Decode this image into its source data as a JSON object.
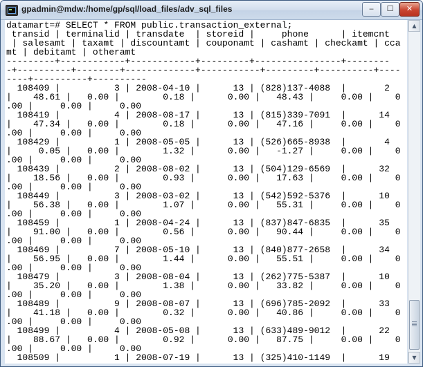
{
  "window": {
    "title": "gpadmin@mdw:/home/gp/sql/load_files/adv_sql_files",
    "minimize_symbol": "‒",
    "maximize_symbol": "☐",
    "close_symbol": "✕"
  },
  "terminal": {
    "lines": [
      "datamart=# SELECT * FROM public.transaction_external;",
      " transid | terminalid | transdate  | storeid |     phone      | itemcnt",
      " | salesamt | taxamt | discountamt | couponamt | cashamt | checkamt | cca",
      "mt | debitamt | otheramt",
      "---------+------------+------------+---------+----------------+--------",
      "-+----------+--------+-------------+-----------+---------+----------+----",
      "----+----------+----------",
      "  108409 |          3 | 2008-04-10 |      13 | (828)137-4088  |       2",
      "|    48.61 |   0.00 |        0.18 |      0.00 |   48.43 |     0.00 |    0",
      ".00 |     0.00 |     0.00",
      "  108419 |          4 | 2008-08-17 |      13 | (815)339-7091  |      14",
      "|    47.34 |   0.00 |        0.18 |      0.00 |   47.16 |     0.00 |    0",
      ".00 |     0.00 |     0.00",
      "  108429 |          1 | 2008-05-05 |      13 | (526)665-8938  |       4",
      "|     0.05 |   0.00 |        1.32 |      0.00 |   -1.27 |     0.00 |    0",
      ".00 |     0.00 |     0.00",
      "  108439 |          2 | 2008-08-02 |      13 | (504)129-6569  |      32",
      "|    18.56 |   0.00 |        0.93 |      0.00 |   17.63 |     0.00 |    0",
      ".00 |     0.00 |     0.00",
      "  108449 |          3 | 2008-03-02 |      13 | (542)592-5376  |      10",
      "|    56.38 |   0.00 |        1.07 |      0.00 |   55.31 |     0.00 |    0",
      ".00 |     0.00 |     0.00",
      "  108459 |          1 | 2008-04-24 |      13 | (837)847-6835  |      35",
      "|    91.00 |   0.00 |        0.56 |      0.00 |   90.44 |     0.00 |    0",
      ".00 |     0.00 |     0.00",
      "  108469 |          7 | 2008-05-10 |      13 | (840)877-2658  |      34",
      "|    56.95 |   0.00 |        1.44 |      0.00 |   55.51 |     0.00 |    0",
      ".00 |     0.00 |     0.00",
      "  108479 |          3 | 2008-08-04 |      13 | (262)775-5387  |      10",
      "|    35.20 |   0.00 |        1.38 |      0.00 |   33.82 |     0.00 |    0",
      ".00 |     0.00 |     0.00",
      "  108489 |          9 | 2008-08-07 |      13 | (696)785-2092  |      33",
      "|    41.18 |   0.00 |        0.32 |      0.00 |   40.86 |     0.00 |    0",
      ".00 |     0.00 |     0.00",
      "  108499 |          4 | 2008-05-08 |      13 | (633)489-9012  |      22",
      "|    88.67 |   0.00 |        0.92 |      0.00 |   87.75 |     0.00 |    0",
      ".00 |     0.00 |     0.00",
      "  108509 |          1 | 2008-07-19 |      13 | (325)410-1149  |      19"
    ]
  },
  "scrollbar": {
    "up_symbol": "▲",
    "down_symbol": "▼"
  }
}
